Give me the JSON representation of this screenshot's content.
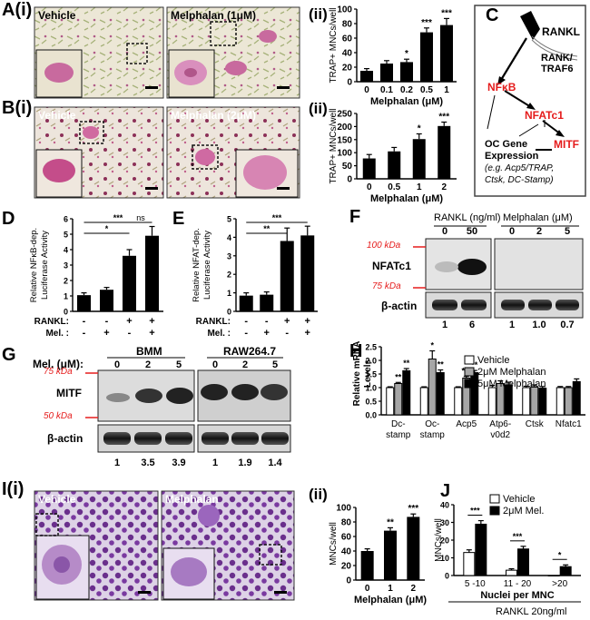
{
  "panels": {
    "A": {
      "label": "A(i)",
      "sub": "(ii)",
      "img_left": "Vehicle",
      "img_right": "Melphalan (1μM)"
    },
    "B": {
      "label": "B(i)",
      "sub": "(ii)",
      "img_left": "Vehicle",
      "img_right": "Melphalan (2μM)"
    },
    "C": {
      "label": "C",
      "rankl": "RANKL",
      "rank": "RANK/",
      "traf6": "TRAF6",
      "nfkb": "NFκB",
      "nfatc1": "NFATc1",
      "mitf": "MITF",
      "oc1": "OC Gene",
      "oc2": "Expression",
      "oc3": "(e.g. Acp5/TRAP,",
      "oc4": "Ctsk, DC-Stamp)"
    },
    "D": {
      "label": "D"
    },
    "E": {
      "label": "E"
    },
    "F": {
      "label": "F",
      "rankl_hdr": "RANKL (ng/ml)",
      "mel_hdr": "Melphalan (μM)",
      "lanes": [
        "0",
        "50",
        "0",
        "2",
        "5"
      ],
      "kda100": "100 kDa",
      "kda75": "75 kDa",
      "nfatc1": "NFATc1",
      "bactin": "β-actin",
      "quant": [
        "1",
        "6",
        "1",
        "1.0",
        "0.7"
      ]
    },
    "G": {
      "label": "G",
      "mel": "Mel. (μM):",
      "bmm": "BMM",
      "raw": "RAW264.7",
      "lanes": [
        "0",
        "2",
        "5",
        "0",
        "2",
        "5"
      ],
      "kda75": "75 kDa",
      "kda50": "50 kDa",
      "mitf": "MITF",
      "bactin": "β-actin",
      "quant": [
        "1",
        "3.5",
        "3.9",
        "1",
        "1.9",
        "1.4"
      ]
    },
    "H": {
      "label": "H"
    },
    "I": {
      "label": "I(i)",
      "sub": "(ii)",
      "img_left": "Vehicle",
      "img_right": "Melphalan"
    },
    "J": {
      "label": "J",
      "rankl": "RANKL 20ng/ml"
    }
  },
  "chart_data": [
    {
      "id": "A-ii",
      "type": "bar",
      "categories": [
        "0",
        "0.1",
        "0.2",
        "0.5",
        "1"
      ],
      "values": [
        15,
        25,
        27,
        68,
        78
      ],
      "errors": [
        3,
        4,
        4,
        6,
        9
      ],
      "sig": [
        "",
        "",
        "*",
        "***",
        "***"
      ],
      "ylabel": "TRAP+ MNCs/well",
      "xlabel": "Melphalan (μM)",
      "ylim": [
        0,
        100
      ],
      "yticks": [
        "0",
        "20",
        "40",
        "60",
        "80",
        "100"
      ]
    },
    {
      "id": "B-ii",
      "type": "bar",
      "categories": [
        "0",
        "0.5",
        "1",
        "2"
      ],
      "values": [
        78,
        105,
        152,
        202
      ],
      "errors": [
        15,
        15,
        20,
        15
      ],
      "sig": [
        "",
        "",
        "*",
        "***"
      ],
      "ylabel": "TRAP+ MNCs/well",
      "xlabel": "Melphalan (μM)",
      "ylim": [
        0,
        250
      ],
      "yticks": [
        "0",
        "50",
        "100",
        "150",
        "200",
        "250"
      ]
    },
    {
      "id": "D",
      "type": "bar",
      "values": [
        1.05,
        1.4,
        3.6,
        4.9
      ],
      "errors": [
        0.15,
        0.15,
        0.4,
        0.6
      ],
      "ylabel": "Relative NFκB-dep. Luciferase Activity",
      "ylim": [
        0,
        6
      ],
      "yticks": [
        "0",
        "1",
        "2",
        "3",
        "4",
        "5",
        "6"
      ],
      "rows": [
        {
          "label": "RANKL:",
          "signs": [
            "-",
            "-",
            "+",
            "+"
          ]
        },
        {
          "label": "Mel. :",
          "signs": [
            "-",
            "+",
            "-",
            "+"
          ]
        }
      ],
      "brackets": [
        {
          "from": 0,
          "to": 2,
          "label": "*"
        },
        {
          "from": 0,
          "to": 3,
          "label": "***"
        },
        {
          "from": 2,
          "to": 3,
          "label": "ns"
        }
      ]
    },
    {
      "id": "E",
      "type": "bar",
      "values": [
        0.85,
        0.9,
        3.8,
        4.1
      ],
      "errors": [
        0.15,
        0.15,
        0.7,
        0.5
      ],
      "ylabel": "Relative NFAT-dep. Luciferase Activity",
      "ylim": [
        0,
        5
      ],
      "yticks": [
        "0",
        "1",
        "2",
        "3",
        "4",
        "5"
      ],
      "rows": [
        {
          "label": "RANKL:",
          "signs": [
            "-",
            "-",
            "+",
            "+"
          ]
        },
        {
          "label": "Mel. :",
          "signs": [
            "-",
            "+",
            "-",
            "+"
          ]
        }
      ],
      "brackets": [
        {
          "from": 0,
          "to": 2,
          "label": "**"
        },
        {
          "from": 0,
          "to": 3,
          "label": "***"
        }
      ]
    },
    {
      "id": "H",
      "type": "bar",
      "categories": [
        "Dc-\nstamp",
        "Oc-\nstamp",
        "Acp5",
        "Atp6-\nv0d2",
        "Ctsk",
        "Nfatc1"
      ],
      "ylabel": "Relative mRNA Levels",
      "ylim": [
        0,
        2.5
      ],
      "yticks": [
        "0.0",
        "0.5",
        "1.0",
        "1.5",
        "2.0",
        "2.5"
      ],
      "series": [
        {
          "name": "Vehicle",
          "color": "#ffffff",
          "values": [
            1.0,
            1.0,
            1.0,
            1.0,
            1.0,
            1.0
          ],
          "errors": [
            0.03,
            0.03,
            0.03,
            0.08,
            0.05,
            0.04
          ],
          "sig": [
            "",
            "",
            "",
            "",
            "",
            ""
          ]
        },
        {
          "name": "2μM Melphalan",
          "color": "#a6a6a6",
          "values": [
            1.15,
            2.05,
            1.35,
            1.15,
            1.02,
            1.0
          ],
          "errors": [
            0.04,
            0.3,
            0.06,
            0.1,
            0.08,
            0.04
          ],
          "sig": [
            "**",
            "*",
            "***",
            "",
            "",
            ""
          ]
        },
        {
          "name": "5μM Melphalan",
          "color": "#000000",
          "values": [
            1.62,
            1.55,
            1.55,
            1.1,
            0.98,
            1.22
          ],
          "errors": [
            0.08,
            0.1,
            0.08,
            0.1,
            0.06,
            0.1
          ],
          "sig": [
            "**",
            "**",
            "**",
            "",
            "",
            ""
          ]
        }
      ]
    },
    {
      "id": "I-ii",
      "type": "bar",
      "categories": [
        "0",
        "1",
        "2"
      ],
      "values": [
        40,
        68,
        87
      ],
      "errors": [
        3,
        4,
        4
      ],
      "sig": [
        "",
        "**",
        "***"
      ],
      "ylabel": "MNCs/well",
      "xlabel": "Melphalan (μM)",
      "ylim": [
        0,
        100
      ],
      "yticks": [
        "0",
        "20",
        "40",
        "60",
        "80",
        "100"
      ]
    },
    {
      "id": "J",
      "type": "bar",
      "categories": [
        "5 -10",
        "11 - 20",
        ">20"
      ],
      "ylabel": "MNCs/well",
      "xlabel": "Nuclei per MNC",
      "ylim": [
        0,
        40
      ],
      "yticks": [
        "0",
        "10",
        "20",
        "30",
        "40"
      ],
      "series": [
        {
          "name": "Vehicle",
          "color": "#ffffff",
          "values": [
            13,
            3,
            0
          ],
          "errors": [
            1.5,
            0.8,
            0
          ]
        },
        {
          "name": "2μM Mel.",
          "color": "#000000",
          "values": [
            29,
            15,
            5
          ],
          "errors": [
            2,
            1.5,
            1
          ]
        }
      ],
      "sig": [
        "***",
        "***",
        "*"
      ]
    }
  ]
}
